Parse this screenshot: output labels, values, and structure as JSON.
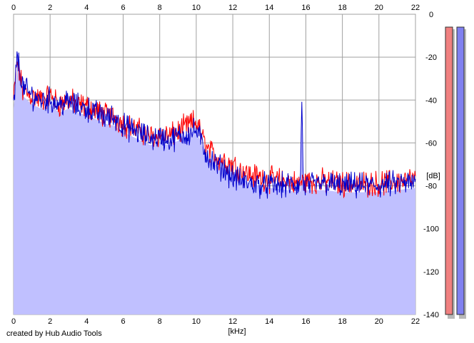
{
  "credit": "created by Hub Audio Tools",
  "chart_data": {
    "type": "line",
    "title": "",
    "xlabel": "[kHz]",
    "ylabel": "[dB]",
    "xlim": [
      0,
      22
    ],
    "ylim": [
      -140,
      0
    ],
    "x_ticks": [
      0,
      2,
      4,
      6,
      8,
      10,
      12,
      14,
      16,
      18,
      20,
      22
    ],
    "x_ticks_top": true,
    "y_ticks": [
      0,
      -20,
      -40,
      -60,
      -80,
      -100,
      -120,
      -140
    ],
    "y_tick_labels": [
      "0",
      "-20",
      "-40",
      "-60",
      "-80",
      "-100",
      "-120",
      "-140"
    ],
    "y_axis_side": "right",
    "grid": true,
    "fill_color": "#c0c0ff",
    "series": [
      {
        "color": "#ff0000",
        "x": [
          0,
          0.2,
          0.5,
          1,
          1.5,
          2,
          2.5,
          3,
          3.5,
          4,
          4.5,
          5,
          5.5,
          6,
          6.5,
          7,
          7.5,
          8,
          8.5,
          9,
          9.5,
          10,
          10.3,
          10.6,
          11,
          11.5,
          12,
          12.5,
          13,
          14,
          15,
          15.5,
          16,
          17,
          18,
          19,
          20,
          21,
          22
        ],
        "y": [
          -40,
          -22,
          -36,
          -38,
          -40,
          -38,
          -42,
          -40,
          -42,
          -43,
          -45,
          -47,
          -48,
          -51,
          -53,
          -55,
          -57,
          -56,
          -57,
          -55,
          -52,
          -50,
          -57,
          -63,
          -66,
          -68,
          -70,
          -73,
          -75,
          -77,
          -78,
          -79,
          -78,
          -78,
          -79,
          -79,
          -79,
          -78,
          -77
        ]
      },
      {
        "color": "#0000cc",
        "x": [
          0,
          0.2,
          0.5,
          1,
          1.5,
          2,
          2.5,
          3,
          3.5,
          4,
          4.5,
          5,
          5.5,
          6,
          6.5,
          7,
          7.5,
          8,
          8.5,
          9,
          9.5,
          10,
          10.3,
          10.6,
          11,
          11.5,
          12,
          12.5,
          13,
          14,
          15,
          15.5,
          15.7,
          15.78,
          15.85,
          16,
          17,
          18,
          19,
          20,
          21,
          22
        ],
        "y": [
          -44,
          -19,
          -34,
          -38,
          -40,
          -40,
          -42,
          -41,
          -43,
          -44,
          -46,
          -48,
          -48,
          -52,
          -54,
          -56,
          -58,
          -57,
          -59,
          -57,
          -56,
          -54,
          -60,
          -66,
          -70,
          -72,
          -76,
          -78,
          -79,
          -80,
          -80,
          -80,
          -80,
          -37,
          -80,
          -80,
          -79,
          -80,
          -80,
          -80,
          -79,
          -79
        ]
      }
    ],
    "level_meters": [
      {
        "color": "#f08080",
        "level_db": 0
      },
      {
        "color": "#8080f0",
        "level_db": 0
      }
    ]
  }
}
